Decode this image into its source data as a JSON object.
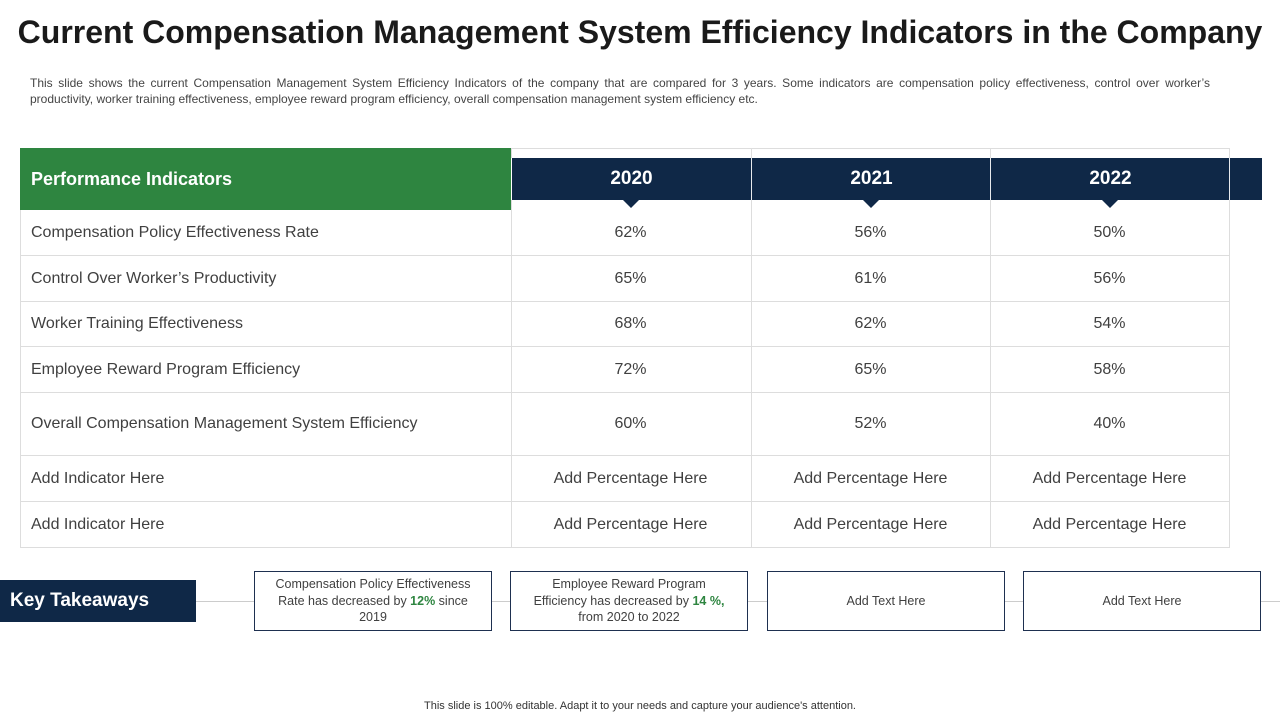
{
  "title": "Current Compensation Management System Efficiency Indicators in the Company",
  "subtitle": "This slide shows the current Compensation Management System Efficiency Indicators of the company that are compared for 3 years. Some indicators are compensation policy effectiveness, control over worker’s productivity, worker training effectiveness, employee reward program efficiency, overall compensation management system efficiency etc.",
  "table": {
    "header_label": "Performance Indicators",
    "years": [
      "2020",
      "2021",
      "2022"
    ],
    "rows": [
      {
        "indicator": "Compensation Policy Effectiveness Rate",
        "values": [
          "62%",
          "56%",
          "50%"
        ]
      },
      {
        "indicator": "Control Over Worker’s Productivity",
        "values": [
          "65%",
          "61%",
          "56%"
        ]
      },
      {
        "indicator": "Worker Training Effectiveness",
        "values": [
          "68%",
          "62%",
          "54%"
        ]
      },
      {
        "indicator": "Employee Reward Program Efficiency",
        "values": [
          "72%",
          "65%",
          "58%"
        ]
      },
      {
        "indicator": "Overall Compensation Management System Efficiency",
        "values": [
          "60%",
          "52%",
          "40%"
        ]
      },
      {
        "indicator": "Add Indicator Here",
        "values": [
          "Add Percentage Here",
          "Add Percentage Here",
          "Add Percentage Here"
        ]
      },
      {
        "indicator": "Add Indicator Here",
        "values": [
          "Add Percentage Here",
          "Add Percentage Here",
          "Add Percentage Here"
        ]
      }
    ]
  },
  "takeaways": {
    "label": "Key Takeaways",
    "box1": {
      "pre": "Compensation Policy Effectiveness Rate has decreased by ",
      "highlight": "12%",
      "post": " since 2019"
    },
    "box2": {
      "pre": "Employee Reward Program Efficiency has decreased by ",
      "highlight": "14 %,",
      "post": " from 2020 to 2022"
    },
    "box3": "Add Text Here",
    "box4": "Add Text Here"
  },
  "colors": {
    "header_green": "#2e8540",
    "navy": "#0f2847",
    "highlight_green": "#2e8540"
  },
  "footer": "This slide is 100% editable. Adapt it to your needs and capture your audience's attention."
}
